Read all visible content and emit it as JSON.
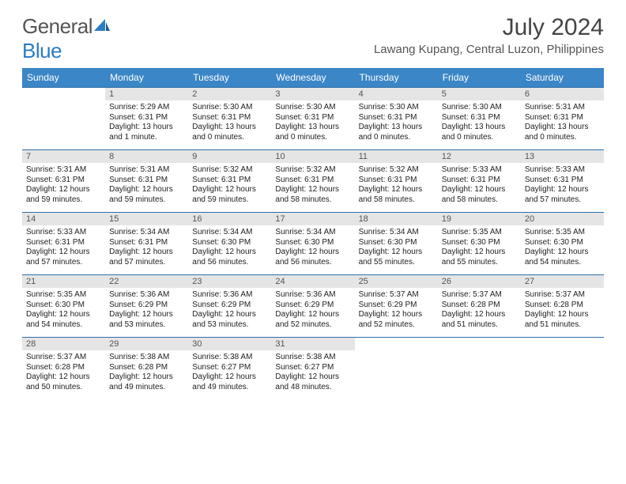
{
  "brand": {
    "part1": "General",
    "part2": "Blue"
  },
  "title": "July 2024",
  "location": "Lawang Kupang, Central Luzon, Philippines",
  "colors": {
    "header_bg": "#3b86c6",
    "header_text": "#ffffff",
    "daynum_bg": "#e5e5e5",
    "row_border": "#2d6fa8",
    "title_color": "#444444",
    "body_text": "#222222",
    "logo_gray": "#555555",
    "logo_blue": "#2d7dc4"
  },
  "fonts": {
    "title_size_pt": 22,
    "location_size_pt": 11,
    "weekday_size_pt": 9,
    "cell_size_pt": 7.5
  },
  "weekdays": [
    "Sunday",
    "Monday",
    "Tuesday",
    "Wednesday",
    "Thursday",
    "Friday",
    "Saturday"
  ],
  "grid": {
    "rows": 5,
    "cols": 7,
    "first_weekday_index": 1,
    "days_in_month": 31
  },
  "days": {
    "1": {
      "sunrise": "5:29 AM",
      "sunset": "6:31 PM",
      "daylight": "13 hours and 1 minute."
    },
    "2": {
      "sunrise": "5:30 AM",
      "sunset": "6:31 PM",
      "daylight": "13 hours and 0 minutes."
    },
    "3": {
      "sunrise": "5:30 AM",
      "sunset": "6:31 PM",
      "daylight": "13 hours and 0 minutes."
    },
    "4": {
      "sunrise": "5:30 AM",
      "sunset": "6:31 PM",
      "daylight": "13 hours and 0 minutes."
    },
    "5": {
      "sunrise": "5:30 AM",
      "sunset": "6:31 PM",
      "daylight": "13 hours and 0 minutes."
    },
    "6": {
      "sunrise": "5:31 AM",
      "sunset": "6:31 PM",
      "daylight": "13 hours and 0 minutes."
    },
    "7": {
      "sunrise": "5:31 AM",
      "sunset": "6:31 PM",
      "daylight": "12 hours and 59 minutes."
    },
    "8": {
      "sunrise": "5:31 AM",
      "sunset": "6:31 PM",
      "daylight": "12 hours and 59 minutes."
    },
    "9": {
      "sunrise": "5:32 AM",
      "sunset": "6:31 PM",
      "daylight": "12 hours and 59 minutes."
    },
    "10": {
      "sunrise": "5:32 AM",
      "sunset": "6:31 PM",
      "daylight": "12 hours and 58 minutes."
    },
    "11": {
      "sunrise": "5:32 AM",
      "sunset": "6:31 PM",
      "daylight": "12 hours and 58 minutes."
    },
    "12": {
      "sunrise": "5:33 AM",
      "sunset": "6:31 PM",
      "daylight": "12 hours and 58 minutes."
    },
    "13": {
      "sunrise": "5:33 AM",
      "sunset": "6:31 PM",
      "daylight": "12 hours and 57 minutes."
    },
    "14": {
      "sunrise": "5:33 AM",
      "sunset": "6:31 PM",
      "daylight": "12 hours and 57 minutes."
    },
    "15": {
      "sunrise": "5:34 AM",
      "sunset": "6:31 PM",
      "daylight": "12 hours and 57 minutes."
    },
    "16": {
      "sunrise": "5:34 AM",
      "sunset": "6:30 PM",
      "daylight": "12 hours and 56 minutes."
    },
    "17": {
      "sunrise": "5:34 AM",
      "sunset": "6:30 PM",
      "daylight": "12 hours and 56 minutes."
    },
    "18": {
      "sunrise": "5:34 AM",
      "sunset": "6:30 PM",
      "daylight": "12 hours and 55 minutes."
    },
    "19": {
      "sunrise": "5:35 AM",
      "sunset": "6:30 PM",
      "daylight": "12 hours and 55 minutes."
    },
    "20": {
      "sunrise": "5:35 AM",
      "sunset": "6:30 PM",
      "daylight": "12 hours and 54 minutes."
    },
    "21": {
      "sunrise": "5:35 AM",
      "sunset": "6:30 PM",
      "daylight": "12 hours and 54 minutes."
    },
    "22": {
      "sunrise": "5:36 AM",
      "sunset": "6:29 PM",
      "daylight": "12 hours and 53 minutes."
    },
    "23": {
      "sunrise": "5:36 AM",
      "sunset": "6:29 PM",
      "daylight": "12 hours and 53 minutes."
    },
    "24": {
      "sunrise": "5:36 AM",
      "sunset": "6:29 PM",
      "daylight": "12 hours and 52 minutes."
    },
    "25": {
      "sunrise": "5:37 AM",
      "sunset": "6:29 PM",
      "daylight": "12 hours and 52 minutes."
    },
    "26": {
      "sunrise": "5:37 AM",
      "sunset": "6:28 PM",
      "daylight": "12 hours and 51 minutes."
    },
    "27": {
      "sunrise": "5:37 AM",
      "sunset": "6:28 PM",
      "daylight": "12 hours and 51 minutes."
    },
    "28": {
      "sunrise": "5:37 AM",
      "sunset": "6:28 PM",
      "daylight": "12 hours and 50 minutes."
    },
    "29": {
      "sunrise": "5:38 AM",
      "sunset": "6:28 PM",
      "daylight": "12 hours and 49 minutes."
    },
    "30": {
      "sunrise": "5:38 AM",
      "sunset": "6:27 PM",
      "daylight": "12 hours and 49 minutes."
    },
    "31": {
      "sunrise": "5:38 AM",
      "sunset": "6:27 PM",
      "daylight": "12 hours and 48 minutes."
    }
  },
  "labels": {
    "sunrise_prefix": "Sunrise: ",
    "sunset_prefix": "Sunset: ",
    "daylight_prefix": "Daylight: "
  }
}
